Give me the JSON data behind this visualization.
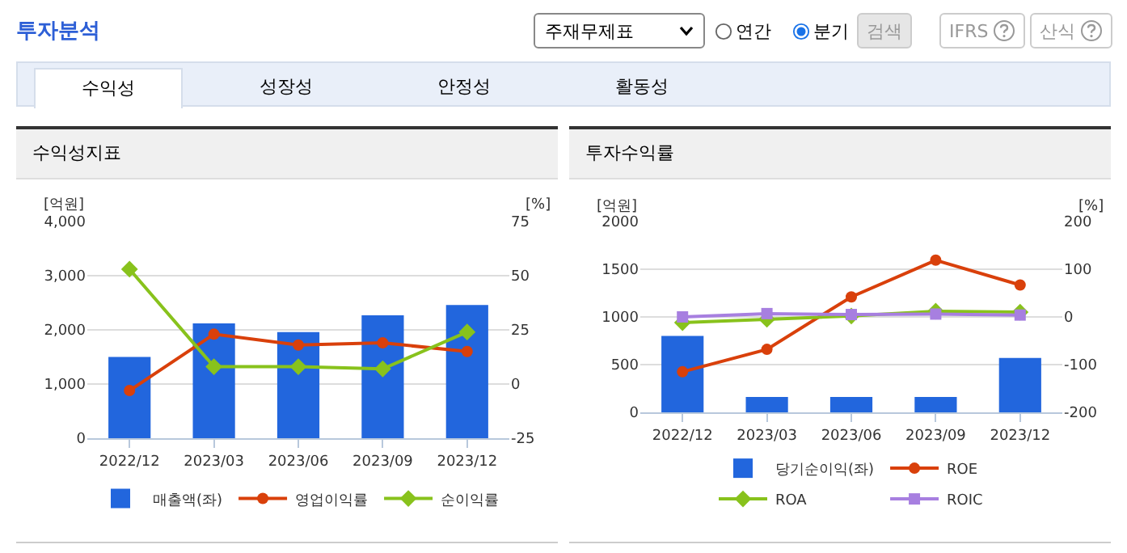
{
  "chart_data": [
    {
      "type": "other",
      "title": "투자분석",
      "annotations": [
        "주재무제표",
        "연간",
        "분기",
        "검색",
        "IFRS",
        "산식",
        "수익성",
        "성장성",
        "안정성",
        "활동성"
      ]
    },
    {
      "type": "bar",
      "title": "수익성지표",
      "ylabel": "[억원]",
      "y2label": "[%]",
      "categories": [
        "2022/12",
        "2023/03",
        "2023/06",
        "2023/09",
        "2023/12"
      ],
      "series": [
        {
          "name": "매출액(좌)",
          "type": "bar",
          "color": "#2266dd",
          "values": [
            1500,
            2120,
            1960,
            2270,
            2460
          ]
        },
        {
          "name": "영업이익률",
          "type": "line",
          "axis": "y2",
          "marker": "circle",
          "color": "#d9400b",
          "values": [
            -3,
            23,
            18,
            19,
            15
          ]
        },
        {
          "name": "순이익률",
          "type": "line",
          "axis": "y2",
          "marker": "diamond",
          "color": "#88c21c",
          "values": [
            53,
            8,
            8,
            7,
            24
          ]
        }
      ],
      "ylim": [
        0,
        4000
      ],
      "yticks": [
        0,
        {
          "value": 1000,
          "label": "1,000"
        },
        {
          "value": 2000,
          "label": "2,000"
        },
        {
          "value": 3000,
          "label": "3,000"
        },
        {
          "value": 4000,
          "label": "4,000"
        }
      ],
      "y2lim": [
        -25,
        75
      ],
      "y2ticks": [
        -25,
        0,
        25,
        50,
        75
      ],
      "grid": "y",
      "legend": "bottom"
    },
    {
      "type": "bar",
      "title": "투자수익률",
      "ylabel": "[억원]",
      "y2label": "[%]",
      "categories": [
        "2022/12",
        "2023/03",
        "2023/06",
        "2023/09",
        "2023/12"
      ],
      "series": [
        {
          "name": "당기순이익(좌)",
          "type": "bar",
          "color": "#2266dd",
          "values": [
            800,
            160,
            160,
            160,
            570
          ]
        },
        {
          "name": "ROE",
          "type": "line",
          "axis": "y2",
          "marker": "circle",
          "color": "#d9400b",
          "values": [
            -115,
            -68,
            42,
            119,
            67
          ]
        },
        {
          "name": "ROA",
          "type": "line",
          "axis": "y2",
          "marker": "diamond",
          "color": "#88c21c",
          "values": [
            -12,
            -5,
            2,
            12,
            10
          ]
        },
        {
          "name": "ROIC",
          "type": "line",
          "axis": "y2",
          "marker": "square",
          "color": "#a77fe0",
          "values": [
            0,
            7,
            5,
            6,
            4
          ]
        }
      ],
      "ylim": [
        0,
        2000
      ],
      "yticks": [
        0,
        500,
        1000,
        1500,
        2000
      ],
      "y2lim": [
        -200,
        200
      ],
      "y2ticks": [
        -200,
        -100,
        0,
        100,
        200
      ],
      "grid": "y",
      "legend": "bottom"
    }
  ]
}
